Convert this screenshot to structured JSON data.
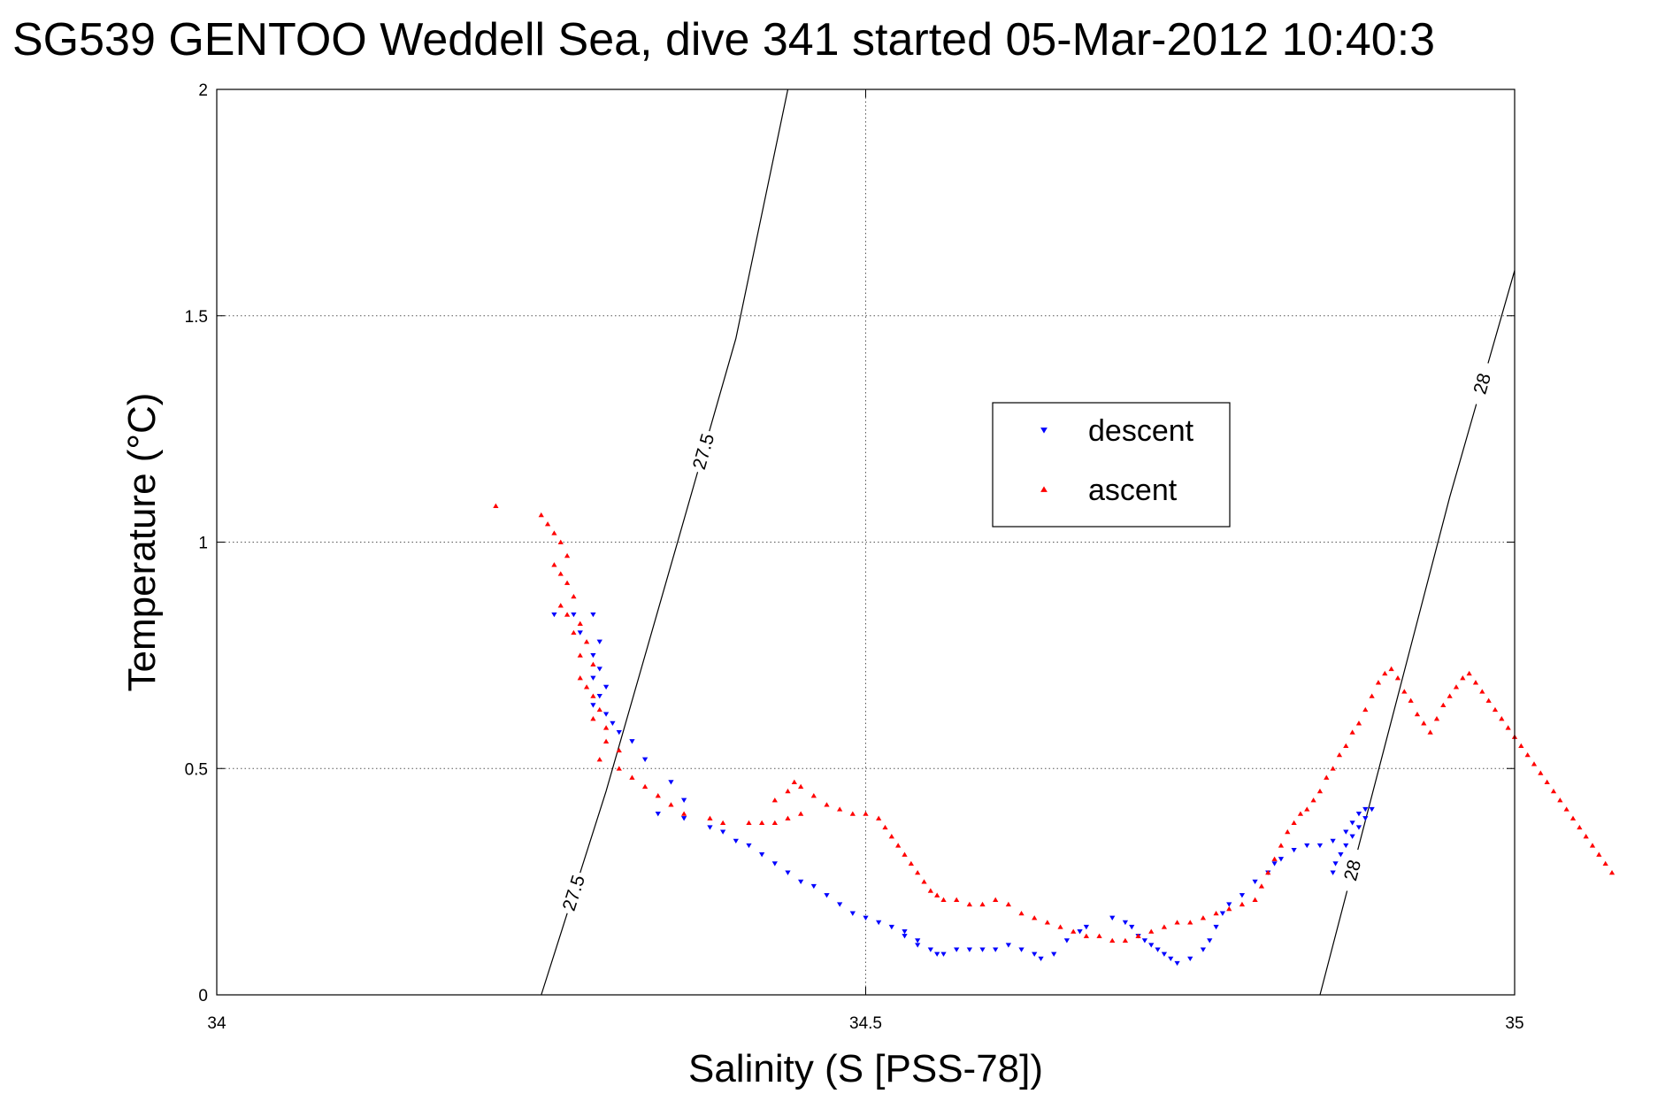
{
  "chart_data": {
    "type": "scatter",
    "title": "SG539 GENTOO Weddell Sea, dive 341 started 05-Mar-2012 10:40:3",
    "xlabel": "Salinity (S [PSS-78])",
    "ylabel": "Temperature (°C)",
    "xlim": [
      34,
      35
    ],
    "ylim": [
      0,
      2
    ],
    "xticks": [
      34,
      34.5,
      35
    ],
    "yticks": [
      0,
      0.5,
      1,
      1.5,
      2
    ],
    "xtick_labels": [
      "34",
      "34.5",
      "35"
    ],
    "ytick_labels": [
      "0",
      "0.5",
      "1",
      "1.5",
      "2"
    ],
    "grid": true,
    "legend_position": "upper-right",
    "series": [
      {
        "name": "descent",
        "color": "#0000ff",
        "marker": "triangle-down",
        "points": [
          [
            34.26,
            0.84
          ],
          [
            34.275,
            0.84
          ],
          [
            34.29,
            0.84
          ],
          [
            34.28,
            0.8
          ],
          [
            34.295,
            0.78
          ],
          [
            34.29,
            0.75
          ],
          [
            34.295,
            0.72
          ],
          [
            34.29,
            0.7
          ],
          [
            34.3,
            0.68
          ],
          [
            34.295,
            0.66
          ],
          [
            34.29,
            0.64
          ],
          [
            34.3,
            0.62
          ],
          [
            34.305,
            0.6
          ],
          [
            34.31,
            0.58
          ],
          [
            34.32,
            0.56
          ],
          [
            34.33,
            0.52
          ],
          [
            34.35,
            0.47
          ],
          [
            34.36,
            0.43
          ],
          [
            34.34,
            0.4
          ],
          [
            34.36,
            0.39
          ],
          [
            34.38,
            0.37
          ],
          [
            34.39,
            0.36
          ],
          [
            34.4,
            0.34
          ],
          [
            34.41,
            0.33
          ],
          [
            34.42,
            0.31
          ],
          [
            34.43,
            0.29
          ],
          [
            34.44,
            0.27
          ],
          [
            34.45,
            0.25
          ],
          [
            34.46,
            0.24
          ],
          [
            34.47,
            0.22
          ],
          [
            34.48,
            0.2
          ],
          [
            34.49,
            0.18
          ],
          [
            34.5,
            0.17
          ],
          [
            34.51,
            0.16
          ],
          [
            34.52,
            0.15
          ],
          [
            34.53,
            0.14
          ],
          [
            34.53,
            0.13
          ],
          [
            34.54,
            0.12
          ],
          [
            34.54,
            0.11
          ],
          [
            34.55,
            0.1
          ],
          [
            34.555,
            0.09
          ],
          [
            34.56,
            0.09
          ],
          [
            34.57,
            0.1
          ],
          [
            34.58,
            0.1
          ],
          [
            34.59,
            0.1
          ],
          [
            34.6,
            0.1
          ],
          [
            34.61,
            0.11
          ],
          [
            34.62,
            0.1
          ],
          [
            34.63,
            0.09
          ],
          [
            34.635,
            0.08
          ],
          [
            34.645,
            0.09
          ],
          [
            34.655,
            0.12
          ],
          [
            34.665,
            0.14
          ],
          [
            34.67,
            0.15
          ],
          [
            34.69,
            0.17
          ],
          [
            34.7,
            0.16
          ],
          [
            34.705,
            0.15
          ],
          [
            34.71,
            0.13
          ],
          [
            34.715,
            0.12
          ],
          [
            34.72,
            0.11
          ],
          [
            34.725,
            0.1
          ],
          [
            34.73,
            0.09
          ],
          [
            34.735,
            0.08
          ],
          [
            34.74,
            0.07
          ],
          [
            34.75,
            0.08
          ],
          [
            34.76,
            0.1
          ],
          [
            34.765,
            0.12
          ],
          [
            34.77,
            0.15
          ],
          [
            34.775,
            0.18
          ],
          [
            34.78,
            0.2
          ],
          [
            34.79,
            0.22
          ],
          [
            34.8,
            0.25
          ],
          [
            34.81,
            0.27
          ],
          [
            34.815,
            0.29
          ],
          [
            34.82,
            0.3
          ],
          [
            34.83,
            0.32
          ],
          [
            34.84,
            0.33
          ],
          [
            34.85,
            0.33
          ],
          [
            34.86,
            0.34
          ],
          [
            34.87,
            0.36
          ],
          [
            34.875,
            0.38
          ],
          [
            34.88,
            0.4
          ],
          [
            34.885,
            0.41
          ],
          [
            34.89,
            0.41
          ],
          [
            34.885,
            0.39
          ],
          [
            34.88,
            0.37
          ],
          [
            34.875,
            0.35
          ],
          [
            34.87,
            0.33
          ],
          [
            34.866,
            0.31
          ],
          [
            34.862,
            0.29
          ],
          [
            34.86,
            0.27
          ]
        ]
      },
      {
        "name": "ascent",
        "color": "#ff0000",
        "marker": "triangle-up",
        "points": [
          [
            34.215,
            1.08
          ],
          [
            34.25,
            1.06
          ],
          [
            34.255,
            1.04
          ],
          [
            34.26,
            1.02
          ],
          [
            34.265,
            1.0
          ],
          [
            34.27,
            0.97
          ],
          [
            34.26,
            0.95
          ],
          [
            34.265,
            0.93
          ],
          [
            34.27,
            0.91
          ],
          [
            34.275,
            0.88
          ],
          [
            34.265,
            0.86
          ],
          [
            34.27,
            0.84
          ],
          [
            34.28,
            0.82
          ],
          [
            34.275,
            0.8
          ],
          [
            34.285,
            0.78
          ],
          [
            34.28,
            0.75
          ],
          [
            34.29,
            0.73
          ],
          [
            34.28,
            0.7
          ],
          [
            34.285,
            0.68
          ],
          [
            34.29,
            0.66
          ],
          [
            34.295,
            0.63
          ],
          [
            34.29,
            0.61
          ],
          [
            34.3,
            0.59
          ],
          [
            34.3,
            0.56
          ],
          [
            34.31,
            0.54
          ],
          [
            34.295,
            0.52
          ],
          [
            34.31,
            0.5
          ],
          [
            34.32,
            0.48
          ],
          [
            34.33,
            0.46
          ],
          [
            34.34,
            0.44
          ],
          [
            34.35,
            0.42
          ],
          [
            34.36,
            0.4
          ],
          [
            34.38,
            0.39
          ],
          [
            34.39,
            0.38
          ],
          [
            34.41,
            0.38
          ],
          [
            34.42,
            0.38
          ],
          [
            34.43,
            0.38
          ],
          [
            34.44,
            0.39
          ],
          [
            34.45,
            0.4
          ],
          [
            34.43,
            0.43
          ],
          [
            34.44,
            0.45
          ],
          [
            34.445,
            0.47
          ],
          [
            34.45,
            0.46
          ],
          [
            34.46,
            0.44
          ],
          [
            34.47,
            0.42
          ],
          [
            34.48,
            0.41
          ],
          [
            34.49,
            0.4
          ],
          [
            34.5,
            0.4
          ],
          [
            34.51,
            0.39
          ],
          [
            34.515,
            0.37
          ],
          [
            34.52,
            0.35
          ],
          [
            34.525,
            0.33
          ],
          [
            34.53,
            0.31
          ],
          [
            34.535,
            0.29
          ],
          [
            34.54,
            0.27
          ],
          [
            34.545,
            0.25
          ],
          [
            34.55,
            0.23
          ],
          [
            34.555,
            0.22
          ],
          [
            34.56,
            0.21
          ],
          [
            34.57,
            0.21
          ],
          [
            34.58,
            0.2
          ],
          [
            34.59,
            0.2
          ],
          [
            34.6,
            0.21
          ],
          [
            34.61,
            0.2
          ],
          [
            34.62,
            0.18
          ],
          [
            34.63,
            0.17
          ],
          [
            34.64,
            0.16
          ],
          [
            34.65,
            0.15
          ],
          [
            34.66,
            0.14
          ],
          [
            34.67,
            0.13
          ],
          [
            34.68,
            0.13
          ],
          [
            34.69,
            0.12
          ],
          [
            34.7,
            0.12
          ],
          [
            34.71,
            0.13
          ],
          [
            34.72,
            0.14
          ],
          [
            34.73,
            0.15
          ],
          [
            34.74,
            0.16
          ],
          [
            34.75,
            0.16
          ],
          [
            34.76,
            0.17
          ],
          [
            34.77,
            0.18
          ],
          [
            34.78,
            0.19
          ],
          [
            34.79,
            0.2
          ],
          [
            34.8,
            0.21
          ],
          [
            34.805,
            0.24
          ],
          [
            34.81,
            0.27
          ],
          [
            34.815,
            0.3
          ],
          [
            34.82,
            0.33
          ],
          [
            34.825,
            0.36
          ],
          [
            34.83,
            0.38
          ],
          [
            34.835,
            0.4
          ],
          [
            34.84,
            0.41
          ],
          [
            34.845,
            0.43
          ],
          [
            34.85,
            0.45
          ],
          [
            34.855,
            0.48
          ],
          [
            34.86,
            0.5
          ],
          [
            34.865,
            0.53
          ],
          [
            34.87,
            0.55
          ],
          [
            34.875,
            0.58
          ],
          [
            34.88,
            0.6
          ],
          [
            34.885,
            0.63
          ],
          [
            34.89,
            0.66
          ],
          [
            34.895,
            0.69
          ],
          [
            34.9,
            0.71
          ],
          [
            34.905,
            0.72
          ],
          [
            34.91,
            0.7
          ],
          [
            34.915,
            0.67
          ],
          [
            34.92,
            0.65
          ],
          [
            34.925,
            0.62
          ],
          [
            34.93,
            0.6
          ],
          [
            34.935,
            0.58
          ],
          [
            34.94,
            0.61
          ],
          [
            34.945,
            0.64
          ],
          [
            34.95,
            0.66
          ],
          [
            34.955,
            0.68
          ],
          [
            34.96,
            0.7
          ],
          [
            34.965,
            0.71
          ],
          [
            34.97,
            0.69
          ],
          [
            34.975,
            0.67
          ],
          [
            34.98,
            0.65
          ],
          [
            34.985,
            0.63
          ],
          [
            34.99,
            0.61
          ],
          [
            34.995,
            0.59
          ],
          [
            35.0,
            0.57
          ],
          [
            35.005,
            0.55
          ],
          [
            35.01,
            0.53
          ],
          [
            35.015,
            0.51
          ],
          [
            35.02,
            0.49
          ],
          [
            35.025,
            0.47
          ],
          [
            35.03,
            0.45
          ],
          [
            35.035,
            0.43
          ],
          [
            35.04,
            0.41
          ],
          [
            35.045,
            0.39
          ],
          [
            35.05,
            0.37
          ],
          [
            35.055,
            0.35
          ],
          [
            35.06,
            0.33
          ],
          [
            35.065,
            0.31
          ],
          [
            35.07,
            0.29
          ],
          [
            35.075,
            0.27
          ]
        ]
      }
    ],
    "contours": [
      {
        "label": "27.5",
        "points": [
          [
            34.25,
            0.0
          ],
          [
            34.3,
            0.45
          ],
          [
            34.35,
            0.95
          ],
          [
            34.4,
            1.45
          ],
          [
            34.44,
            2.0
          ]
        ]
      },
      {
        "label": "28",
        "points": [
          [
            34.85,
            0.0
          ],
          [
            34.9,
            0.55
          ],
          [
            34.95,
            1.1
          ],
          [
            35.0,
            1.6
          ]
        ]
      }
    ]
  }
}
